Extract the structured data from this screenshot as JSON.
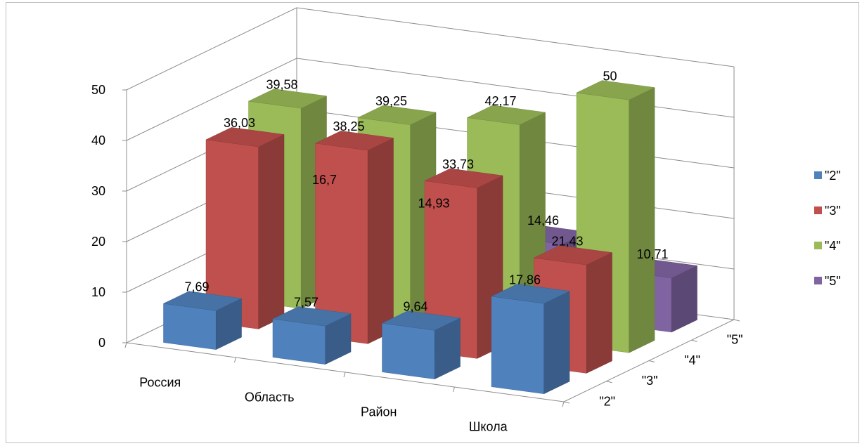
{
  "chart_data": {
    "type": "bar",
    "categories": [
      "Россия",
      "Область",
      "Район",
      "Школа"
    ],
    "series": [
      {
        "name": "\"2\"",
        "values": [
          7.69,
          7.57,
          9.64,
          17.86
        ],
        "labels": [
          "7,69",
          "7,57",
          "9,64",
          "17,86"
        ],
        "color": "#4F81BD"
      },
      {
        "name": "\"3\"",
        "values": [
          36.03,
          38.25,
          33.73,
          21.43
        ],
        "labels": [
          "36,03",
          "38,25",
          "33,73",
          "21,43"
        ],
        "color": "#C0504D"
      },
      {
        "name": "\"4\"",
        "values": [
          39.58,
          39.25,
          42.17,
          50
        ],
        "labels": [
          "39,58",
          "39,25",
          "42,17",
          "50"
        ],
        "color": "#9BBB59"
      },
      {
        "name": "\"5\"",
        "values": [
          16.7,
          14.93,
          14.46,
          10.71
        ],
        "labels": [
          "16,7",
          "14,93",
          "14,46",
          "10,71"
        ],
        "color": "#8064A2"
      }
    ],
    "depth_labels": [
      "\"2\"",
      "\"3\"",
      "\"4\"",
      "\"5\""
    ],
    "ylim": [
      0,
      50
    ],
    "yticks": [
      "0",
      "10",
      "20",
      "30",
      "40",
      "50"
    ],
    "legend": [
      "\"2\"",
      "\"3\"",
      "\"4\"",
      "\"5\""
    ],
    "legend_position": "right",
    "grid": true,
    "style": "3d-column"
  }
}
